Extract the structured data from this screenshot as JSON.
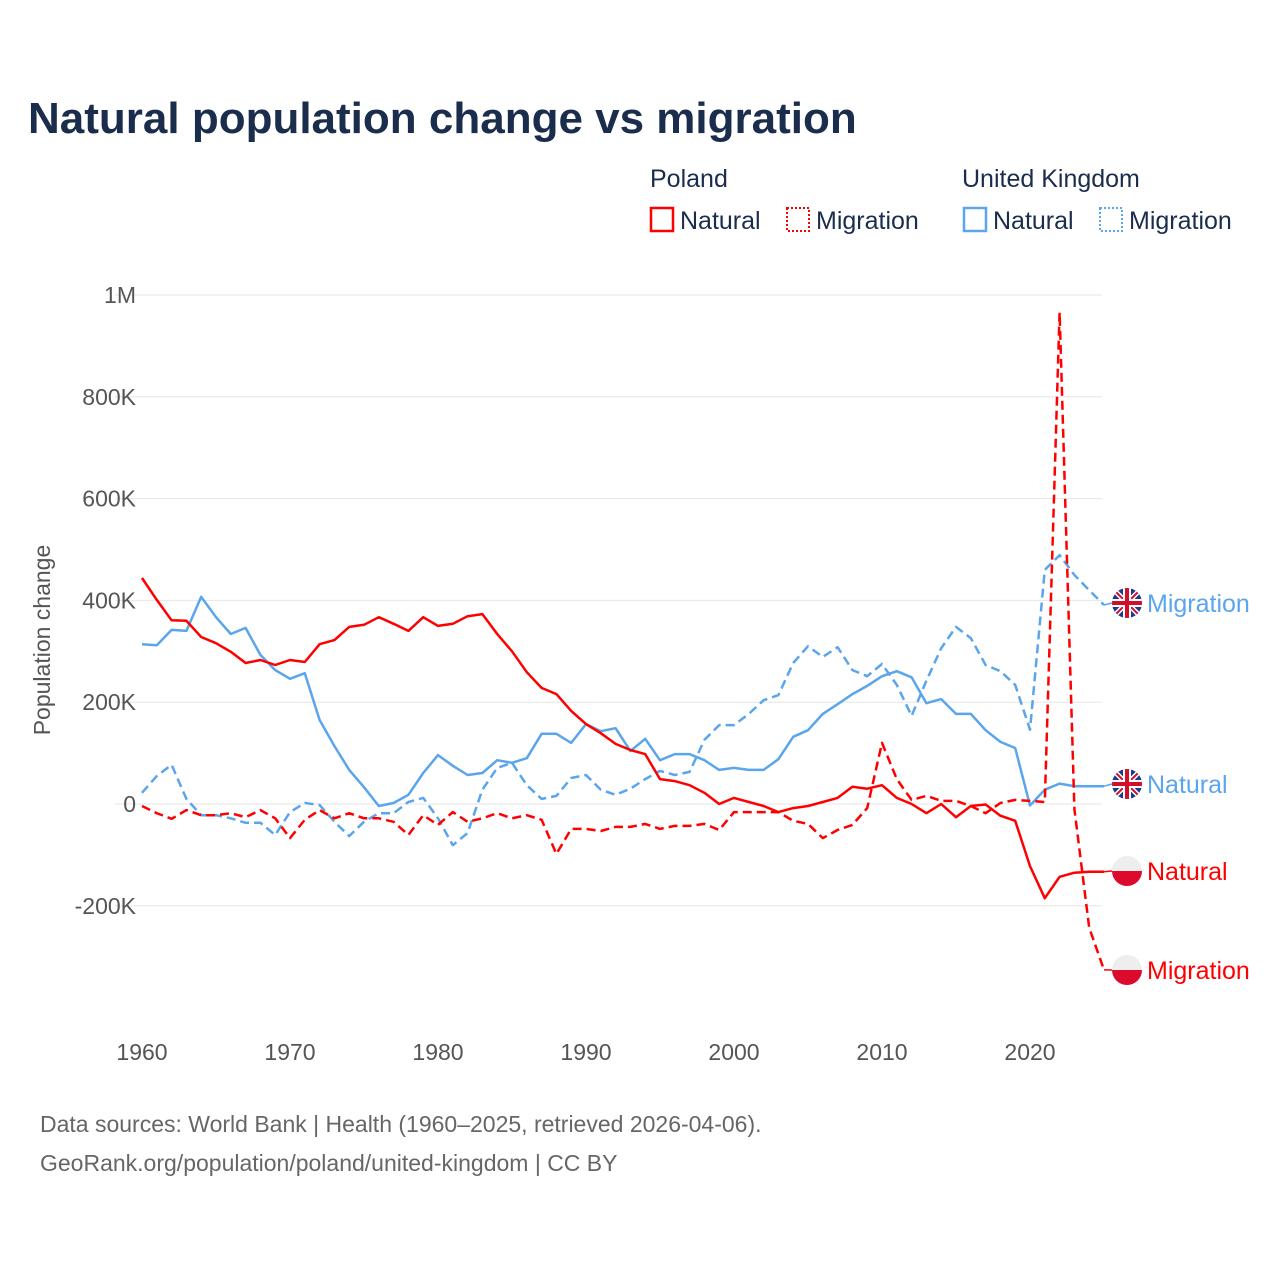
{
  "chart_data": {
    "type": "line",
    "title": "Natural population change vs migration",
    "ylabel": "Population change",
    "xlabel": "",
    "xlim": [
      1960,
      2025
    ],
    "ylim": [
      -400000,
      1000000
    ],
    "x_ticks": [
      "1960",
      "1970",
      "1980",
      "1990",
      "2000",
      "2010",
      "2020"
    ],
    "y_ticks": [
      {
        "value": 1000000,
        "label": "1M"
      },
      {
        "value": 800000,
        "label": "800K"
      },
      {
        "value": 600000,
        "label": "600K"
      },
      {
        "value": 400000,
        "label": "400K"
      },
      {
        "value": 200000,
        "label": "200K"
      },
      {
        "value": 0,
        "label": "0"
      },
      {
        "value": -200000,
        "label": "-200K"
      }
    ],
    "grid": true,
    "legend": {
      "placement": "top-right",
      "groups": [
        {
          "country": "Poland",
          "items": [
            "Natural",
            "Migration"
          ]
        },
        {
          "country": "United Kingdom",
          "items": [
            "Natural",
            "Migration"
          ]
        }
      ]
    },
    "x_start": 1960,
    "series": [
      {
        "name": "Poland Natural",
        "end_label": "Natural",
        "country": "Poland",
        "color": "#ff0000",
        "dashed": false,
        "values": [
          444000,
          401000,
          361000,
          360000,
          328000,
          316000,
          299000,
          277000,
          283000,
          273000,
          283000,
          279000,
          314000,
          322000,
          348000,
          352000,
          367000,
          354000,
          340000,
          367000,
          350000,
          354000,
          369000,
          373000,
          334000,
          300000,
          259000,
          228000,
          216000,
          183000,
          157000,
          139000,
          118000,
          106000,
          98000,
          49000,
          45000,
          37000,
          22000,
          0,
          12000,
          4000,
          -4000,
          -16000,
          -8000,
          -4000,
          4000,
          12000,
          34000,
          30000,
          37000,
          12000,
          0,
          -18000,
          0,
          -26000,
          -4000,
          -1000,
          -23000,
          -33000,
          -122000,
          -185000,
          -143000,
          -135000,
          -133000,
          -133000
        ]
      },
      {
        "name": "Poland Migration",
        "end_label": "Migration",
        "country": "Poland",
        "color": "#ff0000",
        "dashed": true,
        "values": [
          -4000,
          -18000,
          -29000,
          -12000,
          -22000,
          -22000,
          -18000,
          -26000,
          -12000,
          -28000,
          -67000,
          -31000,
          -12000,
          -28000,
          -18000,
          -28000,
          -28000,
          -35000,
          -61000,
          -22000,
          -41000,
          -16000,
          -35000,
          -28000,
          -18000,
          -28000,
          -22000,
          -31000,
          -98000,
          -49000,
          -49000,
          -53000,
          -45000,
          -45000,
          -39000,
          -49000,
          -43000,
          -43000,
          -39000,
          -51000,
          -16000,
          -16000,
          -16000,
          -16000,
          -33000,
          -39000,
          -67000,
          -51000,
          -41000,
          -8000,
          120000,
          49000,
          8000,
          16000,
          6000,
          6000,
          -4000,
          -18000,
          2000,
          8000,
          6000,
          4000,
          966000,
          -10000,
          -243000,
          -326000
        ]
      },
      {
        "name": "United Kingdom Natural",
        "end_label": "Natural",
        "country": "United Kingdom",
        "color": "#5aa5ec",
        "dashed": false,
        "values": [
          314000,
          312000,
          342000,
          340000,
          407000,
          367000,
          334000,
          346000,
          293000,
          263000,
          246000,
          257000,
          165000,
          114000,
          67000,
          33000,
          -4000,
          2000,
          18000,
          61000,
          96000,
          75000,
          57000,
          61000,
          86000,
          81000,
          90000,
          138000,
          138000,
          120000,
          157000,
          143000,
          149000,
          104000,
          128000,
          86000,
          98000,
          98000,
          86000,
          67000,
          71000,
          67000,
          67000,
          88000,
          132000,
          145000,
          177000,
          196000,
          216000,
          232000,
          251000,
          261000,
          249000,
          198000,
          206000,
          177000,
          177000,
          145000,
          122000,
          110000,
          -3000,
          28000,
          40000,
          35000,
          35000,
          35000
        ]
      },
      {
        "name": "United Kingdom Migration",
        "end_label": "Migration",
        "country": "United Kingdom",
        "color": "#5aa5ec",
        "dashed": true,
        "values": [
          22000,
          55000,
          77000,
          10000,
          -22000,
          -22000,
          -28000,
          -37000,
          -37000,
          -61000,
          -16000,
          2000,
          -2000,
          -35000,
          -63000,
          -35000,
          -18000,
          -18000,
          4000,
          12000,
          -28000,
          -81000,
          -57000,
          28000,
          71000,
          81000,
          37000,
          10000,
          16000,
          51000,
          57000,
          28000,
          18000,
          30000,
          49000,
          65000,
          57000,
          63000,
          126000,
          155000,
          155000,
          177000,
          204000,
          214000,
          277000,
          310000,
          289000,
          308000,
          263000,
          251000,
          275000,
          234000,
          173000,
          242000,
          306000,
          348000,
          326000,
          273000,
          261000,
          234000,
          146000,
          460000,
          489000,
          450000,
          420000,
          391000
        ]
      }
    ],
    "footer": [
      "Data sources: World Bank | Health (1960–2025, retrieved 2026-04-06).",
      "GeoRank.org/population/poland/united-kingdom | CC BY"
    ]
  }
}
